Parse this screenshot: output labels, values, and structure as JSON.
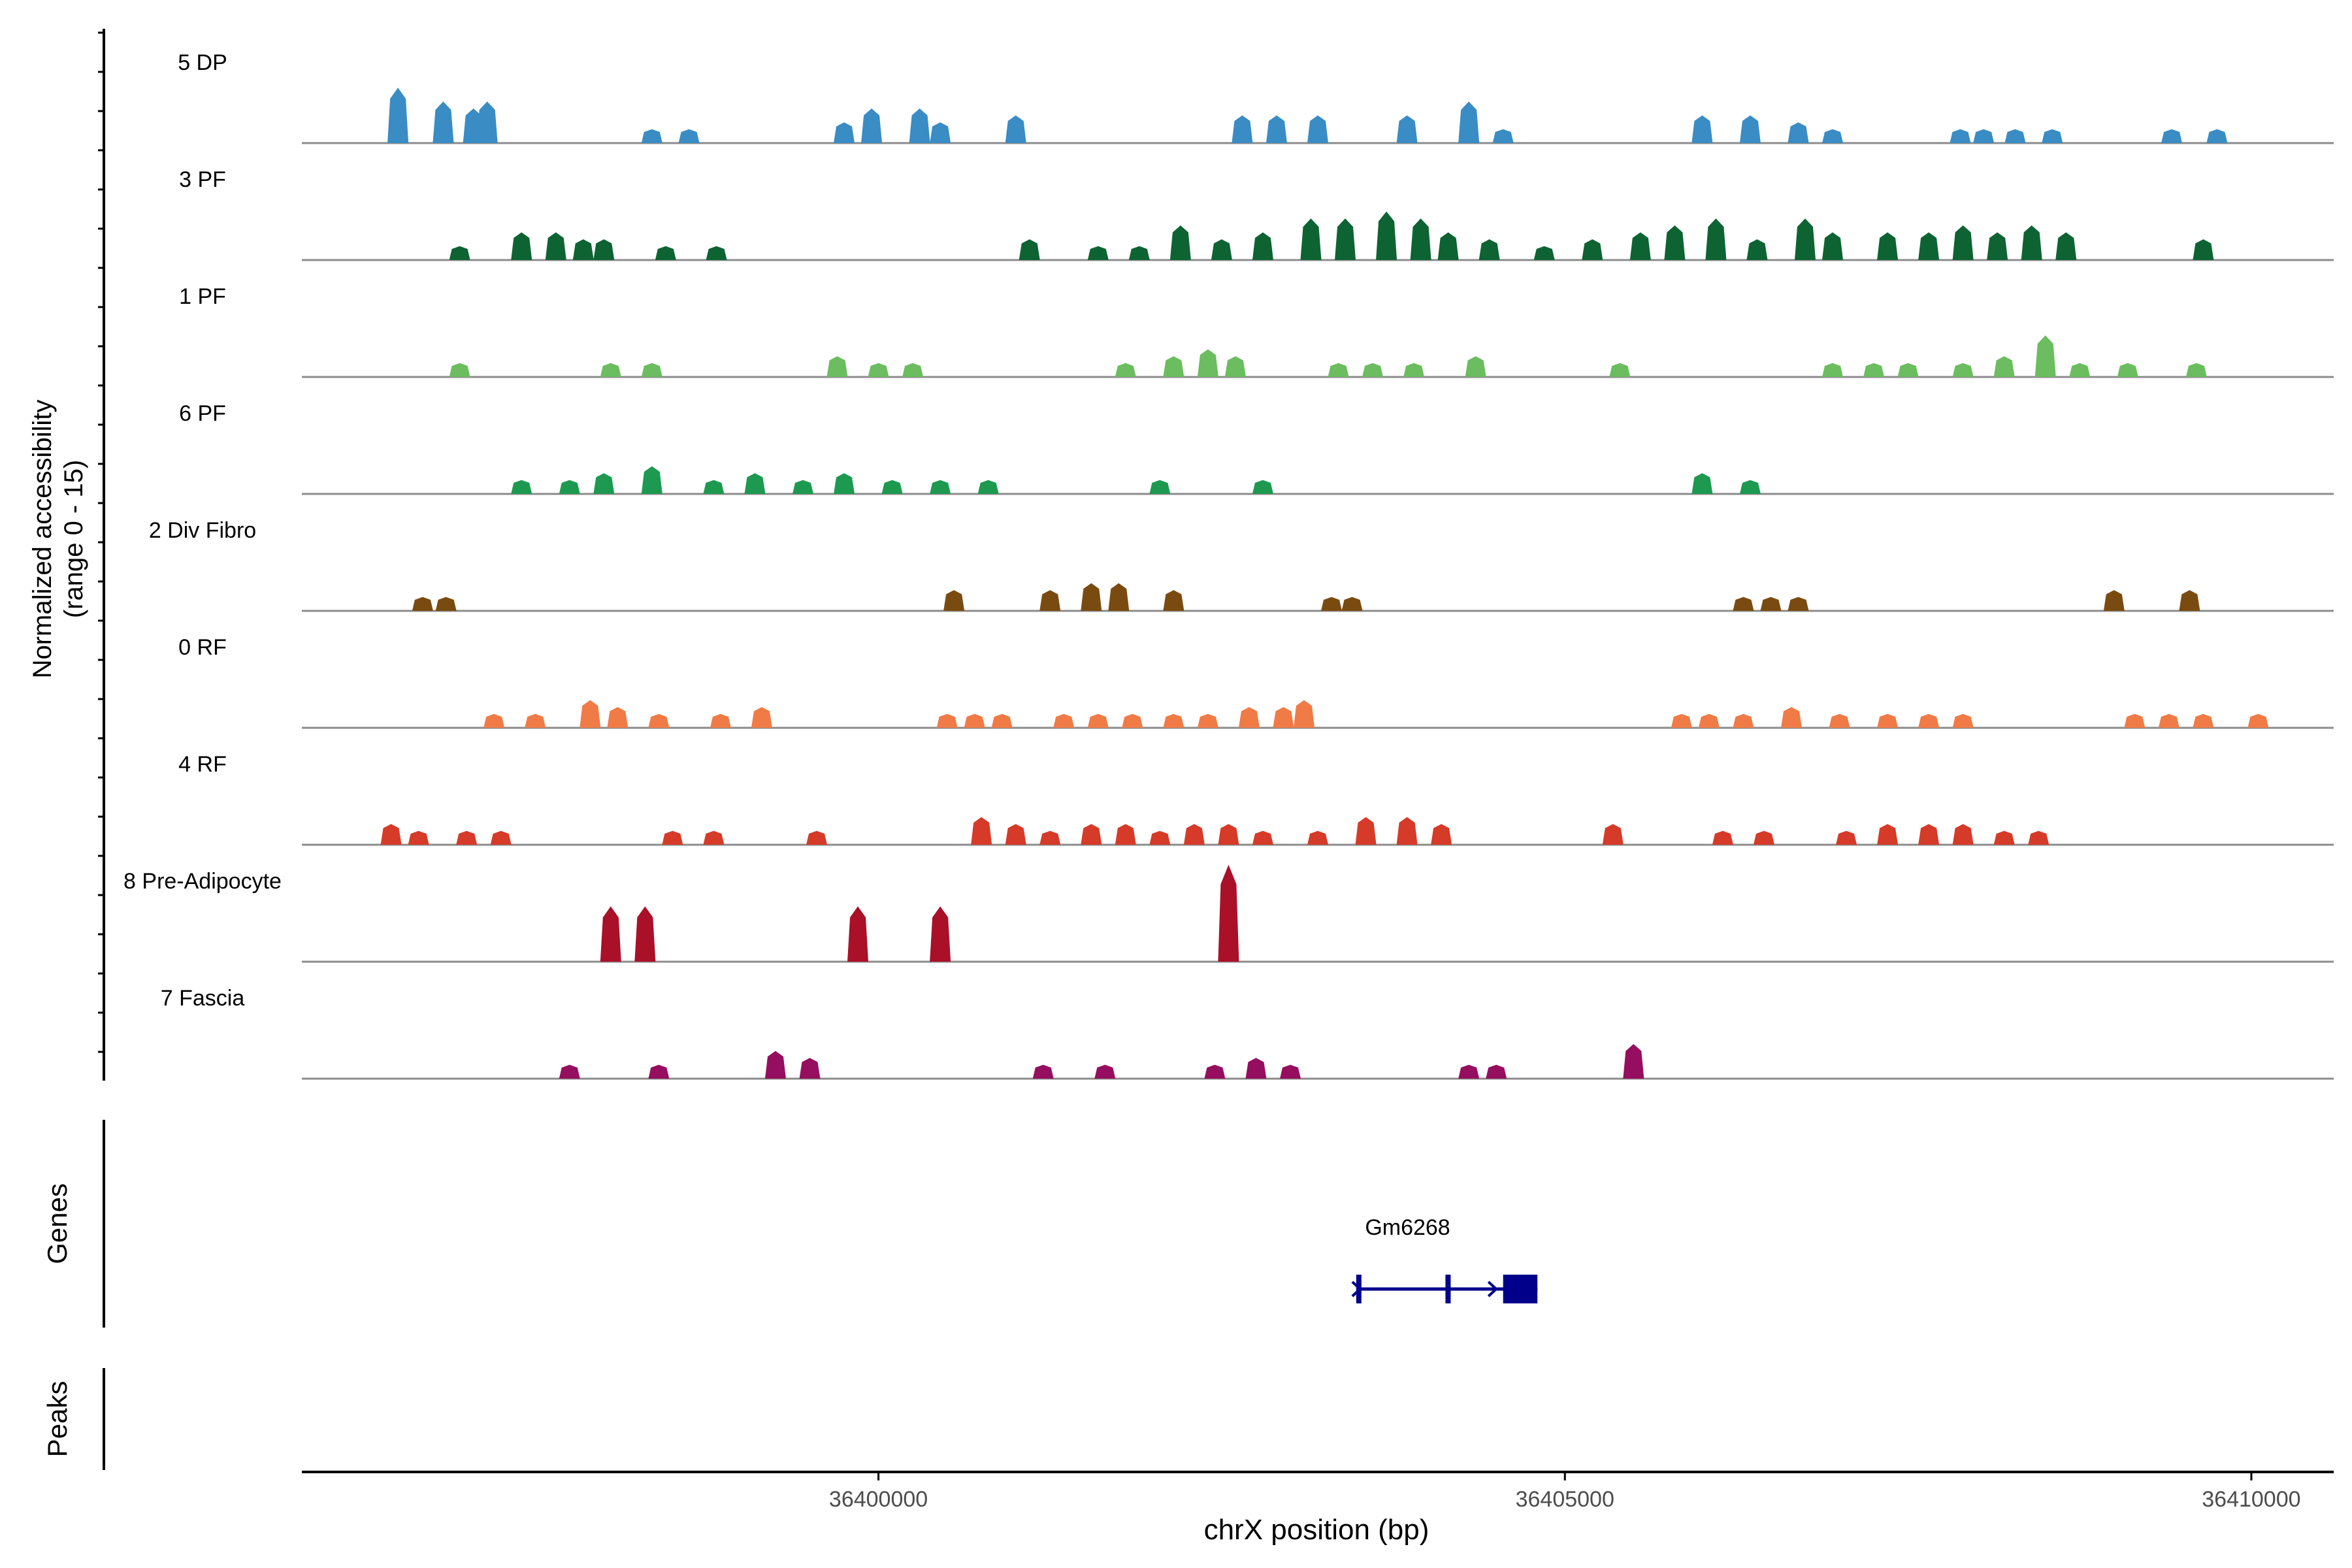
{
  "chart_data": {
    "type": "area",
    "ylabel_line1": "Normalized accessibility",
    "ylabel_line2": "(range 0 - 15)",
    "xlabel": "chrX position (bp)",
    "y_range": [
      0,
      15
    ],
    "x_range": [
      36395800,
      36410600
    ],
    "x_ticks": [
      {
        "value": 36400000,
        "label": "36400000"
      },
      {
        "value": 36405000,
        "label": "36405000"
      },
      {
        "value": 36410000,
        "label": "36410000"
      }
    ],
    "genes_label": "Genes",
    "peaks_label": "Peaks",
    "genes": [
      {
        "name": "Gm6268",
        "start": 36403480,
        "end": 36404800,
        "strand": "+",
        "exons": [
          [
            36403480,
            36403540
          ],
          [
            36404130,
            36404150
          ],
          [
            36404550,
            36404800
          ]
        ]
      }
    ],
    "tracks": [
      {
        "name": "5 DP",
        "color": "#3a8cc4",
        "peaks": [
          [
            36396500,
            8
          ],
          [
            36396830,
            6
          ],
          [
            36397050,
            5
          ],
          [
            36397150,
            6
          ],
          [
            36398350,
            2
          ],
          [
            36398620,
            2
          ],
          [
            36399750,
            3
          ],
          [
            36399950,
            5
          ],
          [
            36400300,
            5
          ],
          [
            36400450,
            3
          ],
          [
            36401000,
            4
          ],
          [
            36402650,
            4
          ],
          [
            36402900,
            4
          ],
          [
            36403200,
            4
          ],
          [
            36403850,
            4
          ],
          [
            36404300,
            6
          ],
          [
            36404550,
            2
          ],
          [
            36406000,
            4
          ],
          [
            36406350,
            4
          ],
          [
            36406700,
            3
          ],
          [
            36406950,
            2
          ],
          [
            36407880,
            2
          ],
          [
            36408050,
            2
          ],
          [
            36408280,
            2
          ],
          [
            36408550,
            2
          ],
          [
            36409420,
            2
          ],
          [
            36409750,
            2
          ]
        ]
      },
      {
        "name": "3 PF",
        "color": "#0e6333",
        "peaks": [
          [
            36396950,
            2
          ],
          [
            36397400,
            4
          ],
          [
            36397650,
            4
          ],
          [
            36397850,
            3
          ],
          [
            36398000,
            3
          ],
          [
            36398450,
            2
          ],
          [
            36398820,
            2
          ],
          [
            36401100,
            3
          ],
          [
            36401600,
            2
          ],
          [
            36401900,
            2
          ],
          [
            36402200,
            5
          ],
          [
            36402500,
            3
          ],
          [
            36402800,
            4
          ],
          [
            36403150,
            6
          ],
          [
            36403400,
            6
          ],
          [
            36403700,
            7
          ],
          [
            36403950,
            6
          ],
          [
            36404150,
            4
          ],
          [
            36404450,
            3
          ],
          [
            36404850,
            2
          ],
          [
            36405200,
            3
          ],
          [
            36405550,
            4
          ],
          [
            36405800,
            5
          ],
          [
            36406100,
            6
          ],
          [
            36406400,
            3
          ],
          [
            36406750,
            6
          ],
          [
            36406950,
            4
          ],
          [
            36407350,
            4
          ],
          [
            36407650,
            4
          ],
          [
            36407900,
            5
          ],
          [
            36408150,
            4
          ],
          [
            36408400,
            5
          ],
          [
            36408650,
            4
          ],
          [
            36409650,
            3
          ]
        ]
      },
      {
        "name": "1 PF",
        "color": "#6bbd5f",
        "peaks": [
          [
            36396950,
            2
          ],
          [
            36398050,
            2
          ],
          [
            36398350,
            2
          ],
          [
            36399700,
            3
          ],
          [
            36400000,
            2
          ],
          [
            36400250,
            2
          ],
          [
            36401800,
            2
          ],
          [
            36402150,
            3
          ],
          [
            36402400,
            4
          ],
          [
            36402600,
            3
          ],
          [
            36403350,
            2
          ],
          [
            36403600,
            2
          ],
          [
            36403900,
            2
          ],
          [
            36404350,
            3
          ],
          [
            36405400,
            2
          ],
          [
            36406950,
            2
          ],
          [
            36407250,
            2
          ],
          [
            36407500,
            2
          ],
          [
            36407900,
            2
          ],
          [
            36408200,
            3
          ],
          [
            36408500,
            6
          ],
          [
            36408750,
            2
          ],
          [
            36409100,
            2
          ],
          [
            36409600,
            2
          ]
        ]
      },
      {
        "name": "6 PF",
        "color": "#1d9a50",
        "peaks": [
          [
            36397400,
            2
          ],
          [
            36397750,
            2
          ],
          [
            36398000,
            3
          ],
          [
            36398350,
            4
          ],
          [
            36398800,
            2
          ],
          [
            36399100,
            3
          ],
          [
            36399450,
            2
          ],
          [
            36399750,
            3
          ],
          [
            36400100,
            2
          ],
          [
            36400450,
            2
          ],
          [
            36400800,
            2
          ],
          [
            36402050,
            2
          ],
          [
            36402800,
            2
          ],
          [
            36406000,
            3
          ],
          [
            36406350,
            2
          ]
        ]
      },
      {
        "name": "2 Div Fibro",
        "color": "#7a4b10",
        "peaks": [
          [
            36396680,
            2
          ],
          [
            36396850,
            2
          ],
          [
            36400550,
            3
          ],
          [
            36401250,
            3
          ],
          [
            36401550,
            4
          ],
          [
            36401750,
            4
          ],
          [
            36402150,
            3
          ],
          [
            36403300,
            2
          ],
          [
            36403450,
            2
          ],
          [
            36406300,
            2
          ],
          [
            36406500,
            2
          ],
          [
            36406700,
            2
          ],
          [
            36409000,
            3
          ],
          [
            36409550,
            3
          ]
        ]
      },
      {
        "name": "0 RF",
        "color": "#f07b46",
        "peaks": [
          [
            36397200,
            2
          ],
          [
            36397500,
            2
          ],
          [
            36397900,
            4
          ],
          [
            36398100,
            3
          ],
          [
            36398400,
            2
          ],
          [
            36398850,
            2
          ],
          [
            36399150,
            3
          ],
          [
            36400500,
            2
          ],
          [
            36400700,
            2
          ],
          [
            36400900,
            2
          ],
          [
            36401350,
            2
          ],
          [
            36401600,
            2
          ],
          [
            36401850,
            2
          ],
          [
            36402150,
            2
          ],
          [
            36402400,
            2
          ],
          [
            36402700,
            3
          ],
          [
            36402950,
            3
          ],
          [
            36403100,
            4
          ],
          [
            36405850,
            2
          ],
          [
            36406050,
            2
          ],
          [
            36406300,
            2
          ],
          [
            36406650,
            3
          ],
          [
            36407000,
            2
          ],
          [
            36407350,
            2
          ],
          [
            36407650,
            2
          ],
          [
            36407900,
            2
          ],
          [
            36409150,
            2
          ],
          [
            36409400,
            2
          ],
          [
            36409650,
            2
          ],
          [
            36410050,
            2
          ]
        ]
      },
      {
        "name": "4 RF",
        "color": "#d63a28",
        "peaks": [
          [
            36396450,
            3
          ],
          [
            36396650,
            2
          ],
          [
            36397000,
            2
          ],
          [
            36397250,
            2
          ],
          [
            36398500,
            2
          ],
          [
            36398800,
            2
          ],
          [
            36399550,
            2
          ],
          [
            36400750,
            4
          ],
          [
            36401000,
            3
          ],
          [
            36401250,
            2
          ],
          [
            36401550,
            3
          ],
          [
            36401800,
            3
          ],
          [
            36402050,
            2
          ],
          [
            36402300,
            3
          ],
          [
            36402550,
            3
          ],
          [
            36402800,
            2
          ],
          [
            36403200,
            2
          ],
          [
            36403550,
            4
          ],
          [
            36403850,
            4
          ],
          [
            36404100,
            3
          ],
          [
            36405350,
            3
          ],
          [
            36406150,
            2
          ],
          [
            36406450,
            2
          ],
          [
            36407050,
            2
          ],
          [
            36407350,
            3
          ],
          [
            36407650,
            3
          ],
          [
            36407900,
            3
          ],
          [
            36408200,
            2
          ],
          [
            36408450,
            2
          ]
        ]
      },
      {
        "name": "8 Pre-Adipocyte",
        "color": "#aa1028",
        "peaks": [
          [
            36398050,
            8
          ],
          [
            36398300,
            8
          ],
          [
            36399850,
            8
          ],
          [
            36400450,
            8
          ],
          [
            36402550,
            14
          ]
        ]
      },
      {
        "name": "7 Fascia",
        "color": "#960e5f",
        "peaks": [
          [
            36397750,
            2
          ],
          [
            36398400,
            2
          ],
          [
            36399250,
            4
          ],
          [
            36399500,
            3
          ],
          [
            36401200,
            2
          ],
          [
            36401650,
            2
          ],
          [
            36402450,
            2
          ],
          [
            36402750,
            3
          ],
          [
            36403000,
            2
          ],
          [
            36404300,
            2
          ],
          [
            36404500,
            2
          ],
          [
            36405500,
            5
          ]
        ]
      }
    ]
  }
}
